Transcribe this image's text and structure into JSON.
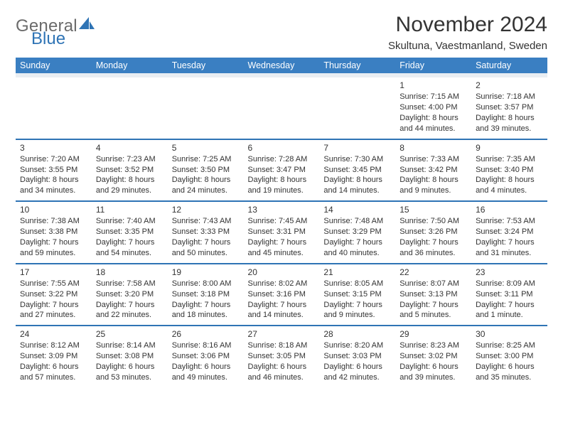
{
  "brand": {
    "general": "General",
    "blue": "Blue"
  },
  "header": {
    "title": "November 2024",
    "subtitle": "Skultuna, Vaestmanland, Sweden"
  },
  "colors": {
    "header_bg": "#3a7fc2",
    "header_spacer": "#e9eef3",
    "row_divider": "#2f74b5",
    "text": "#333333",
    "logo_gray": "#6b6b6b",
    "logo_blue": "#2f74b5",
    "page_bg": "#ffffff"
  },
  "typography": {
    "title_fontsize": 30,
    "subtitle_fontsize": 15,
    "dayheader_fontsize": 12.5,
    "cell_fontsize": 11,
    "font_family": "Arial"
  },
  "calendar": {
    "day_names": [
      "Sunday",
      "Monday",
      "Tuesday",
      "Wednesday",
      "Thursday",
      "Friday",
      "Saturday"
    ],
    "leading_blanks": 5,
    "days": [
      {
        "n": "1",
        "sunrise": "Sunrise: 7:15 AM",
        "sunset": "Sunset: 4:00 PM",
        "day1": "Daylight: 8 hours",
        "day2": "and 44 minutes."
      },
      {
        "n": "2",
        "sunrise": "Sunrise: 7:18 AM",
        "sunset": "Sunset: 3:57 PM",
        "day1": "Daylight: 8 hours",
        "day2": "and 39 minutes."
      },
      {
        "n": "3",
        "sunrise": "Sunrise: 7:20 AM",
        "sunset": "Sunset: 3:55 PM",
        "day1": "Daylight: 8 hours",
        "day2": "and 34 minutes."
      },
      {
        "n": "4",
        "sunrise": "Sunrise: 7:23 AM",
        "sunset": "Sunset: 3:52 PM",
        "day1": "Daylight: 8 hours",
        "day2": "and 29 minutes."
      },
      {
        "n": "5",
        "sunrise": "Sunrise: 7:25 AM",
        "sunset": "Sunset: 3:50 PM",
        "day1": "Daylight: 8 hours",
        "day2": "and 24 minutes."
      },
      {
        "n": "6",
        "sunrise": "Sunrise: 7:28 AM",
        "sunset": "Sunset: 3:47 PM",
        "day1": "Daylight: 8 hours",
        "day2": "and 19 minutes."
      },
      {
        "n": "7",
        "sunrise": "Sunrise: 7:30 AM",
        "sunset": "Sunset: 3:45 PM",
        "day1": "Daylight: 8 hours",
        "day2": "and 14 minutes."
      },
      {
        "n": "8",
        "sunrise": "Sunrise: 7:33 AM",
        "sunset": "Sunset: 3:42 PM",
        "day1": "Daylight: 8 hours",
        "day2": "and 9 minutes."
      },
      {
        "n": "9",
        "sunrise": "Sunrise: 7:35 AM",
        "sunset": "Sunset: 3:40 PM",
        "day1": "Daylight: 8 hours",
        "day2": "and 4 minutes."
      },
      {
        "n": "10",
        "sunrise": "Sunrise: 7:38 AM",
        "sunset": "Sunset: 3:38 PM",
        "day1": "Daylight: 7 hours",
        "day2": "and 59 minutes."
      },
      {
        "n": "11",
        "sunrise": "Sunrise: 7:40 AM",
        "sunset": "Sunset: 3:35 PM",
        "day1": "Daylight: 7 hours",
        "day2": "and 54 minutes."
      },
      {
        "n": "12",
        "sunrise": "Sunrise: 7:43 AM",
        "sunset": "Sunset: 3:33 PM",
        "day1": "Daylight: 7 hours",
        "day2": "and 50 minutes."
      },
      {
        "n": "13",
        "sunrise": "Sunrise: 7:45 AM",
        "sunset": "Sunset: 3:31 PM",
        "day1": "Daylight: 7 hours",
        "day2": "and 45 minutes."
      },
      {
        "n": "14",
        "sunrise": "Sunrise: 7:48 AM",
        "sunset": "Sunset: 3:29 PM",
        "day1": "Daylight: 7 hours",
        "day2": "and 40 minutes."
      },
      {
        "n": "15",
        "sunrise": "Sunrise: 7:50 AM",
        "sunset": "Sunset: 3:26 PM",
        "day1": "Daylight: 7 hours",
        "day2": "and 36 minutes."
      },
      {
        "n": "16",
        "sunrise": "Sunrise: 7:53 AM",
        "sunset": "Sunset: 3:24 PM",
        "day1": "Daylight: 7 hours",
        "day2": "and 31 minutes."
      },
      {
        "n": "17",
        "sunrise": "Sunrise: 7:55 AM",
        "sunset": "Sunset: 3:22 PM",
        "day1": "Daylight: 7 hours",
        "day2": "and 27 minutes."
      },
      {
        "n": "18",
        "sunrise": "Sunrise: 7:58 AM",
        "sunset": "Sunset: 3:20 PM",
        "day1": "Daylight: 7 hours",
        "day2": "and 22 minutes."
      },
      {
        "n": "19",
        "sunrise": "Sunrise: 8:00 AM",
        "sunset": "Sunset: 3:18 PM",
        "day1": "Daylight: 7 hours",
        "day2": "and 18 minutes."
      },
      {
        "n": "20",
        "sunrise": "Sunrise: 8:02 AM",
        "sunset": "Sunset: 3:16 PM",
        "day1": "Daylight: 7 hours",
        "day2": "and 14 minutes."
      },
      {
        "n": "21",
        "sunrise": "Sunrise: 8:05 AM",
        "sunset": "Sunset: 3:15 PM",
        "day1": "Daylight: 7 hours",
        "day2": "and 9 minutes."
      },
      {
        "n": "22",
        "sunrise": "Sunrise: 8:07 AM",
        "sunset": "Sunset: 3:13 PM",
        "day1": "Daylight: 7 hours",
        "day2": "and 5 minutes."
      },
      {
        "n": "23",
        "sunrise": "Sunrise: 8:09 AM",
        "sunset": "Sunset: 3:11 PM",
        "day1": "Daylight: 7 hours",
        "day2": "and 1 minute."
      },
      {
        "n": "24",
        "sunrise": "Sunrise: 8:12 AM",
        "sunset": "Sunset: 3:09 PM",
        "day1": "Daylight: 6 hours",
        "day2": "and 57 minutes."
      },
      {
        "n": "25",
        "sunrise": "Sunrise: 8:14 AM",
        "sunset": "Sunset: 3:08 PM",
        "day1": "Daylight: 6 hours",
        "day2": "and 53 minutes."
      },
      {
        "n": "26",
        "sunrise": "Sunrise: 8:16 AM",
        "sunset": "Sunset: 3:06 PM",
        "day1": "Daylight: 6 hours",
        "day2": "and 49 minutes."
      },
      {
        "n": "27",
        "sunrise": "Sunrise: 8:18 AM",
        "sunset": "Sunset: 3:05 PM",
        "day1": "Daylight: 6 hours",
        "day2": "and 46 minutes."
      },
      {
        "n": "28",
        "sunrise": "Sunrise: 8:20 AM",
        "sunset": "Sunset: 3:03 PM",
        "day1": "Daylight: 6 hours",
        "day2": "and 42 minutes."
      },
      {
        "n": "29",
        "sunrise": "Sunrise: 8:23 AM",
        "sunset": "Sunset: 3:02 PM",
        "day1": "Daylight: 6 hours",
        "day2": "and 39 minutes."
      },
      {
        "n": "30",
        "sunrise": "Sunrise: 8:25 AM",
        "sunset": "Sunset: 3:00 PM",
        "day1": "Daylight: 6 hours",
        "day2": "and 35 minutes."
      }
    ]
  }
}
